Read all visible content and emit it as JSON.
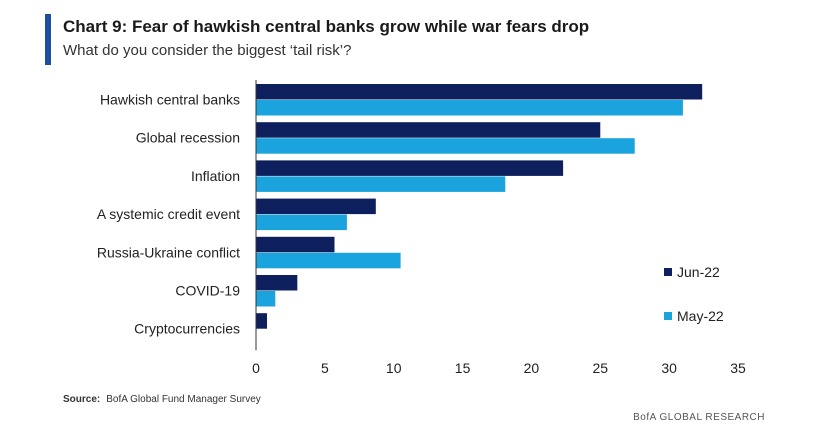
{
  "header": {
    "title": "Chart 9: Fear of hawkish central banks grow while war fears drop",
    "subtitle": "What do you consider the biggest ‘tail risk’?"
  },
  "footer": {
    "source_label": "Source:",
    "source_text": "BofA Global Fund Manager Survey",
    "branding": "BofA GLOBAL RESEARCH"
  },
  "colors": {
    "jun_22": "#0d1f5c",
    "may_22": "#1aa3dc",
    "accent": "#1f4e9e"
  },
  "chart_data": {
    "type": "bar",
    "orientation": "horizontal",
    "title": "Chart 9: Fear of hawkish central banks grow while war fears drop",
    "subtitle": "What do you consider the biggest ‘tail risk’?",
    "categories": [
      "Hawkish central banks",
      "Global recession",
      "Inflation",
      "A systemic credit event",
      "Russia-Ukraine conflict",
      "COVID-19",
      "Cryptocurrencies"
    ],
    "series": [
      {
        "name": "Jun-22",
        "color": "#0d1f5c",
        "values": [
          32.4,
          25.0,
          22.3,
          8.7,
          5.7,
          3.0,
          0.8
        ]
      },
      {
        "name": "May-22",
        "color": "#1aa3dc",
        "values": [
          31.0,
          27.5,
          18.1,
          6.6,
          10.5,
          1.4,
          0
        ]
      }
    ],
    "xlim": [
      0,
      35
    ],
    "xticks": [
      0,
      5,
      10,
      15,
      20,
      25,
      30,
      35
    ],
    "xlabel": "",
    "ylabel": "",
    "grid": false,
    "legend_position": "bottom-right"
  }
}
